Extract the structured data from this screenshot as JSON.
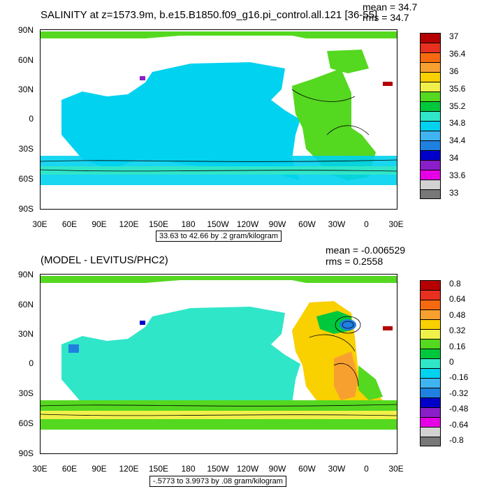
{
  "top": {
    "title": "SALINITY at z=1573.9m, b.e15.B1850.f09_g16.pi_control.all.121 [36-55]",
    "mean": "mean = 34.7",
    "rms": "rms = 34.7",
    "range": "33.63 to 42.66 by .2 gram/kilogram",
    "colorbar_labels": [
      "37",
      "36.4",
      "36",
      "35.6",
      "35.2",
      "34.8",
      "34.4",
      "34",
      "33.6",
      "33"
    ],
    "colorbar_colors": [
      "#b40000",
      "#e83020",
      "#f56a10",
      "#f7a030",
      "#f9d000",
      "#f0f04a",
      "#55d820",
      "#00c83c",
      "#30e6c8",
      "#00d2f0",
      "#40b4f0",
      "#2080e0",
      "#0000c8",
      "#8a1ec8",
      "#e600e6",
      "#d2d2d2",
      "#787878"
    ]
  },
  "bottom": {
    "title": "(MODEL - LEVITUS/PHC2)",
    "mean": "mean = -0.006529",
    "rms": "rms = 0.2558",
    "range": "-.5773 to 3.9973 by .08 gram/kilogram",
    "colorbar_labels": [
      "0.8",
      "0.64",
      "0.48",
      "0.32",
      "0.16",
      "0",
      "-0.16",
      "-0.32",
      "-0.48",
      "-0.64",
      "-0.8"
    ],
    "colorbar_colors": [
      "#b40000",
      "#e83020",
      "#f56a10",
      "#f7a030",
      "#f9d000",
      "#f0f04a",
      "#55d820",
      "#00c83c",
      "#30e6c8",
      "#00d2f0",
      "#40b4f0",
      "#2080e0",
      "#0000c8",
      "#8a1ec8",
      "#e600e6",
      "#d2d2d2",
      "#787878"
    ]
  },
  "axes": {
    "lat_labels": [
      "90N",
      "60N",
      "30N",
      "0",
      "30S",
      "60S",
      "90S"
    ],
    "lon_labels": [
      "30E",
      "60E",
      "90E",
      "120E",
      "150E",
      "180",
      "150W",
      "120W",
      "90W",
      "60W",
      "30W",
      "0",
      "30E"
    ]
  }
}
